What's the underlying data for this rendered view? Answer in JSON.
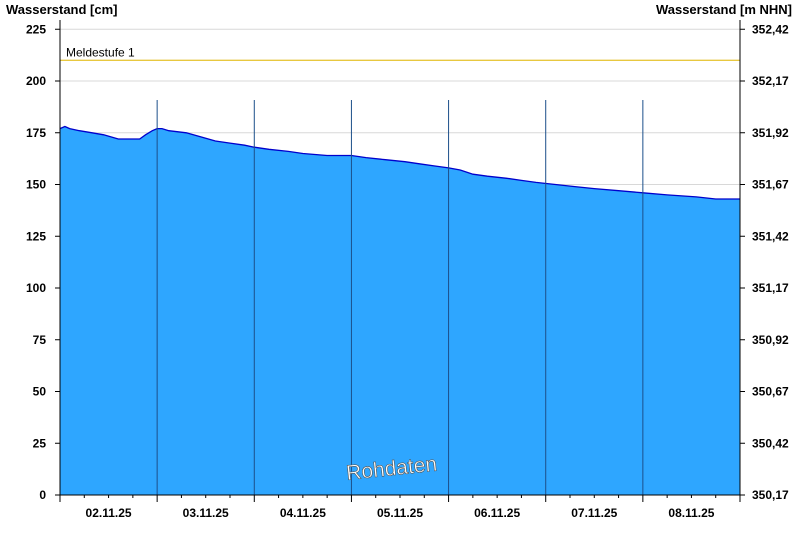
{
  "chart_data": {
    "type": "area",
    "ylabel_left": "Wasserstand [cm]",
    "ylabel_right": "Wasserstand [m NHN]",
    "ylim": [
      0,
      230
    ],
    "yticks_left": [
      0,
      25,
      50,
      75,
      100,
      125,
      150,
      175,
      200,
      225
    ],
    "yticks_right": [
      "350,17",
      "350,42",
      "350,67",
      "350,92",
      "351,17",
      "351,42",
      "351,67",
      "351,92",
      "352,17",
      "352,42"
    ],
    "xlim_days": [
      0,
      7
    ],
    "x_tick_labels": [
      "02.11.25",
      "03.11.25",
      "04.11.25",
      "05.11.25",
      "06.11.25",
      "07.11.25",
      "08.11.25"
    ],
    "threshold": {
      "label": "Meldestufe 1",
      "value": 210,
      "color": "#e8c840"
    },
    "series": [
      {
        "fill": "#2ea6ff",
        "stroke": "#0000cc",
        "points": [
          [
            0.0,
            177
          ],
          [
            0.05,
            178
          ],
          [
            0.1,
            177
          ],
          [
            0.2,
            176
          ],
          [
            0.33,
            175
          ],
          [
            0.45,
            174
          ],
          [
            0.6,
            172
          ],
          [
            0.82,
            172
          ],
          [
            0.88,
            174
          ],
          [
            0.95,
            176
          ],
          [
            1.0,
            177
          ],
          [
            1.05,
            177
          ],
          [
            1.12,
            176
          ],
          [
            1.3,
            175
          ],
          [
            1.45,
            173
          ],
          [
            1.6,
            171
          ],
          [
            1.75,
            170
          ],
          [
            1.9,
            169
          ],
          [
            2.0,
            168
          ],
          [
            2.15,
            167
          ],
          [
            2.35,
            166
          ],
          [
            2.5,
            165
          ],
          [
            2.75,
            164
          ],
          [
            3.0,
            164
          ],
          [
            3.15,
            163
          ],
          [
            3.35,
            162
          ],
          [
            3.55,
            161
          ],
          [
            3.7,
            160
          ],
          [
            3.85,
            159
          ],
          [
            4.0,
            158
          ],
          [
            4.12,
            157
          ],
          [
            4.25,
            155
          ],
          [
            4.4,
            154
          ],
          [
            4.6,
            153
          ],
          [
            4.75,
            152
          ],
          [
            4.9,
            151
          ],
          [
            5.1,
            150
          ],
          [
            5.3,
            149
          ],
          [
            5.5,
            148
          ],
          [
            5.75,
            147
          ],
          [
            6.0,
            146
          ],
          [
            6.25,
            145
          ],
          [
            6.55,
            144
          ],
          [
            6.75,
            143
          ],
          [
            7.0,
            143
          ]
        ]
      }
    ],
    "annotations": [
      {
        "text": "Rohdaten",
        "style": "watermark"
      }
    ],
    "grid": true,
    "legend": "none"
  }
}
